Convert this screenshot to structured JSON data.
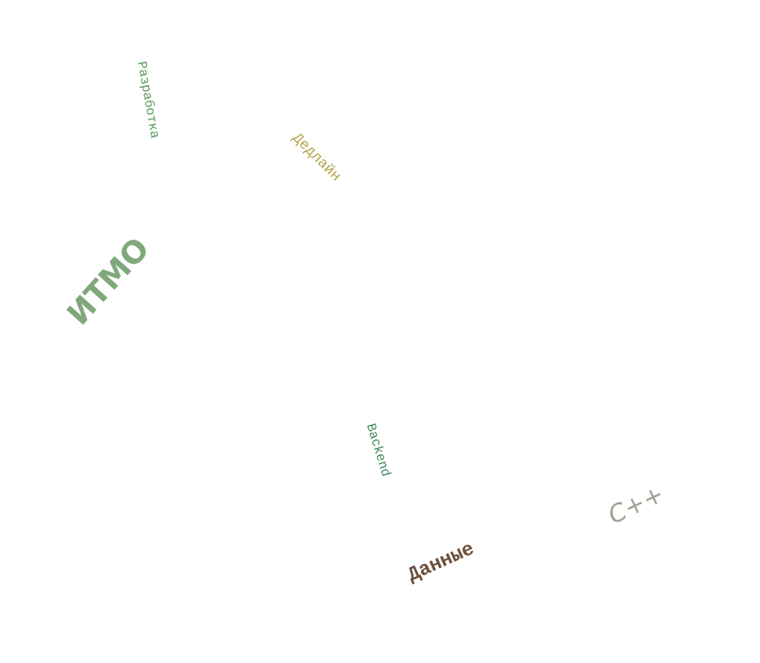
{
  "words": [
    {
      "id": "razrabotka",
      "text": "Разработка",
      "color": "#5a9a5a"
    },
    {
      "id": "dedlain",
      "text": "Дедлайн",
      "color": "#b3a24a"
    },
    {
      "id": "itmo",
      "text": "ИТМО",
      "color": "#7fa87a"
    },
    {
      "id": "backend",
      "text": "Backend",
      "color": "#3d8a5a"
    },
    {
      "id": "cpp",
      "text": "C++",
      "color": "#9aa592"
    },
    {
      "id": "dannye",
      "text": "Данные",
      "color": "#6a4e3a"
    }
  ]
}
